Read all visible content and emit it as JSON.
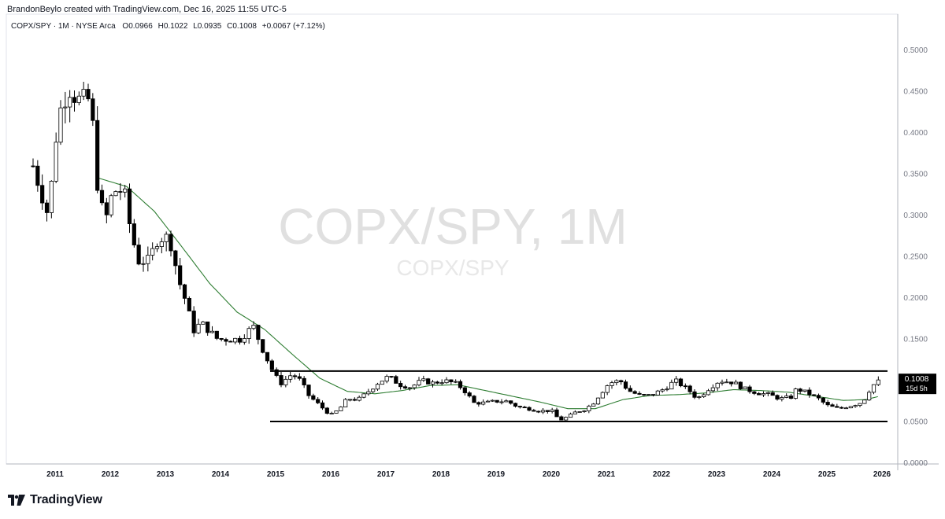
{
  "header": {
    "credit": "BrandonBeylo created with TradingView.com, Dec 16, 2025 11:55 UTC-5"
  },
  "legend": {
    "symbol": "COPX/SPY · 1M · NYSE Arca",
    "open_label": "O",
    "open": "0.0966",
    "high_label": "H",
    "high": "0.1022",
    "low_label": "L",
    "low": "0.0935",
    "close_label": "C",
    "close": "0.1008",
    "change": "+0.0067 (+7.12%)"
  },
  "watermark": {
    "title": "COPX/SPY, 1M",
    "subtitle": "COPX/SPY"
  },
  "price_badge": {
    "price": "0.1008",
    "countdown": "15d 5h"
  },
  "brand": {
    "name": "TradingView"
  },
  "colors": {
    "line": "#2e7d32",
    "candle_fill": "#000000",
    "axis_text": "#787b86",
    "level": "#000000"
  },
  "chart_data": {
    "type": "candlestick",
    "title": "COPX/SPY, 1M",
    "interval": "monthly",
    "x_range": [
      "2010-06",
      "2026-02"
    ],
    "ylim": [
      0,
      0.54
    ],
    "y_ticks": [
      "0.5000",
      "0.4500",
      "0.4000",
      "0.3500",
      "0.3000",
      "0.2500",
      "0.2000",
      "0.1500",
      "0.1000",
      "0.0500",
      "0.0000"
    ],
    "x_ticks": [
      "2011",
      "2012",
      "2013",
      "2014",
      "2015",
      "2016",
      "2017",
      "2018",
      "2019",
      "2020",
      "2021",
      "2022",
      "2023",
      "2024",
      "2025",
      "2026"
    ],
    "moving_average_anchors": [
      [
        2011.8,
        0.345
      ],
      [
        2012.3,
        0.335
      ],
      [
        2012.8,
        0.305
      ],
      [
        2013.3,
        0.262
      ],
      [
        2013.8,
        0.218
      ],
      [
        2014.3,
        0.183
      ],
      [
        2014.8,
        0.162
      ],
      [
        2015.3,
        0.132
      ],
      [
        2015.8,
        0.103
      ],
      [
        2016.3,
        0.087
      ],
      [
        2016.8,
        0.084
      ],
      [
        2017.3,
        0.088
      ],
      [
        2017.8,
        0.094
      ],
      [
        2018.3,
        0.095
      ],
      [
        2018.8,
        0.088
      ],
      [
        2019.3,
        0.081
      ],
      [
        2019.8,
        0.074
      ],
      [
        2020.3,
        0.066
      ],
      [
        2020.8,
        0.066
      ],
      [
        2021.3,
        0.077
      ],
      [
        2021.8,
        0.082
      ],
      [
        2022.3,
        0.083
      ],
      [
        2022.8,
        0.085
      ],
      [
        2023.3,
        0.089
      ],
      [
        2023.8,
        0.088
      ],
      [
        2024.3,
        0.086
      ],
      [
        2024.8,
        0.081
      ],
      [
        2025.3,
        0.076
      ],
      [
        2025.7,
        0.077
      ],
      [
        2025.95,
        0.081
      ]
    ],
    "candle_anchors": [
      [
        2010.6,
        0.36
      ],
      [
        2010.85,
        0.305
      ],
      [
        2010.95,
        0.345
      ],
      [
        2011.05,
        0.42
      ],
      [
        2011.25,
        0.455
      ],
      [
        2011.4,
        0.44
      ],
      [
        2011.55,
        0.44
      ],
      [
        2011.65,
        0.44
      ],
      [
        2011.75,
        0.345
      ],
      [
        2011.9,
        0.29
      ],
      [
        2012.05,
        0.33
      ],
      [
        2012.25,
        0.33
      ],
      [
        2012.35,
        0.29
      ],
      [
        2012.5,
        0.245
      ],
      [
        2012.7,
        0.245
      ],
      [
        2012.85,
        0.27
      ],
      [
        2013.0,
        0.275
      ],
      [
        2013.1,
        0.265
      ],
      [
        2013.25,
        0.22
      ],
      [
        2013.4,
        0.19
      ],
      [
        2013.5,
        0.16
      ],
      [
        2013.65,
        0.17
      ],
      [
        2013.8,
        0.16
      ],
      [
        2013.95,
        0.15
      ],
      [
        2014.15,
        0.15
      ],
      [
        2014.35,
        0.15
      ],
      [
        2014.5,
        0.16
      ],
      [
        2014.6,
        0.165
      ],
      [
        2014.75,
        0.14
      ],
      [
        2014.9,
        0.118
      ],
      [
        2015.0,
        0.105
      ],
      [
        2015.1,
        0.097
      ],
      [
        2015.3,
        0.108
      ],
      [
        2015.45,
        0.1
      ],
      [
        2015.6,
        0.082
      ],
      [
        2015.85,
        0.067
      ],
      [
        2016.0,
        0.058
      ],
      [
        2016.15,
        0.065
      ],
      [
        2016.3,
        0.078
      ],
      [
        2016.5,
        0.077
      ],
      [
        2016.65,
        0.085
      ],
      [
        2016.85,
        0.097
      ],
      [
        2017.05,
        0.105
      ],
      [
        2017.25,
        0.095
      ],
      [
        2017.45,
        0.092
      ],
      [
        2017.65,
        0.1
      ],
      [
        2017.85,
        0.097
      ],
      [
        2018.05,
        0.1
      ],
      [
        2018.25,
        0.097
      ],
      [
        2018.4,
        0.09
      ],
      [
        2018.6,
        0.073
      ],
      [
        2018.8,
        0.073
      ],
      [
        2019.0,
        0.075
      ],
      [
        2019.2,
        0.075
      ],
      [
        2019.4,
        0.068
      ],
      [
        2019.6,
        0.066
      ],
      [
        2019.8,
        0.063
      ],
      [
        2020.0,
        0.064
      ],
      [
        2020.15,
        0.052
      ],
      [
        2020.3,
        0.056
      ],
      [
        2020.45,
        0.062
      ],
      [
        2020.6,
        0.065
      ],
      [
        2020.75,
        0.072
      ],
      [
        2020.9,
        0.085
      ],
      [
        2021.05,
        0.097
      ],
      [
        2021.25,
        0.1
      ],
      [
        2021.4,
        0.088
      ],
      [
        2021.6,
        0.082
      ],
      [
        2021.8,
        0.082
      ],
      [
        2022.05,
        0.09
      ],
      [
        2022.25,
        0.1
      ],
      [
        2022.5,
        0.088
      ],
      [
        2022.65,
        0.078
      ],
      [
        2022.85,
        0.09
      ],
      [
        2023.05,
        0.1
      ],
      [
        2023.3,
        0.098
      ],
      [
        2023.5,
        0.09
      ],
      [
        2023.75,
        0.085
      ],
      [
        2023.95,
        0.083
      ],
      [
        2024.15,
        0.078
      ],
      [
        2024.35,
        0.08
      ],
      [
        2024.45,
        0.09
      ],
      [
        2024.65,
        0.085
      ],
      [
        2024.85,
        0.078
      ],
      [
        2025.0,
        0.07
      ],
      [
        2025.2,
        0.066
      ],
      [
        2025.45,
        0.07
      ],
      [
        2025.65,
        0.074
      ],
      [
        2025.8,
        0.092
      ],
      [
        2025.93,
        0.1
      ]
    ],
    "levels": [
      {
        "name": "resistance",
        "value": 0.1115,
        "x_start": 2014.9,
        "x_end": 2026.1
      },
      {
        "name": "support",
        "value": 0.0505,
        "x_start": 2014.9,
        "x_end": 2026.1
      }
    ],
    "last_price": 0.1008
  }
}
